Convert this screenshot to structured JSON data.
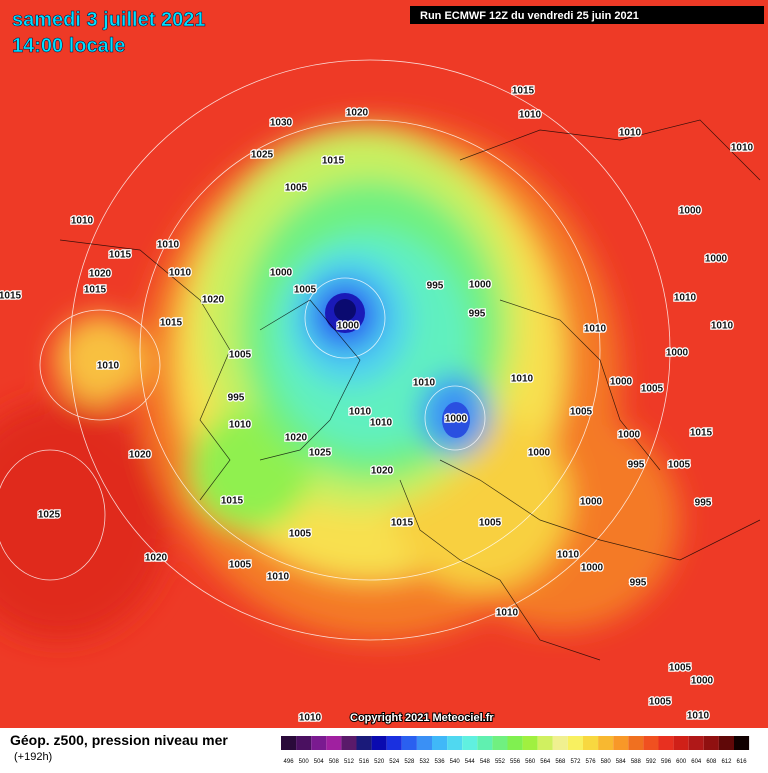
{
  "header": {
    "date": "samedi 3 juillet 2021",
    "time": "14:00 locale",
    "run": "Run ECMWF 12Z du vendredi 25 juin 2021"
  },
  "map": {
    "isobar_labels": [
      "1015",
      "1010",
      "1010",
      "1010",
      "1020",
      "1030",
      "1025",
      "1015",
      "1005",
      "1000",
      "1010",
      "1010",
      "1015",
      "1010",
      "1000",
      "1020",
      "1015",
      "1015",
      "1005",
      "995",
      "1000",
      "1000",
      "1020",
      "1010",
      "995",
      "1015",
      "1000",
      "1010",
      "1010",
      "1005",
      "1010",
      "1000",
      "1010",
      "1010",
      "1000",
      "1005",
      "995",
      "1010",
      "1010",
      "1010",
      "1000",
      "1005",
      "1000",
      "1015",
      "1020",
      "1025",
      "1020",
      "1020",
      "1000",
      "995",
      "1005",
      "1015",
      "1000",
      "995",
      "1025",
      "1015",
      "1005",
      "1005",
      "1020",
      "1005",
      "1010",
      "1010",
      "1000",
      "995",
      "1010",
      "1005",
      "1000",
      "1005",
      "1010",
      "1010"
    ],
    "copyright": "Copyright 2021 Meteociel.fr"
  },
  "legend": {
    "title": "Géop. z500, pression niveau mer",
    "lead": "(+192h)",
    "scale": [
      496,
      500,
      504,
      508,
      512,
      516,
      520,
      524,
      528,
      532,
      536,
      540,
      544,
      548,
      552,
      556,
      560,
      564,
      568,
      572,
      576,
      580,
      584,
      588,
      592,
      596,
      600,
      604,
      608,
      612,
      616
    ],
    "colors": [
      "#2a0a3a",
      "#4a1060",
      "#7a1a90",
      "#a020a0",
      "#5a1a6a",
      "#1a1a7a",
      "#0a0ab0",
      "#1a30e0",
      "#2a60f0",
      "#3a90f5",
      "#40b8f8",
      "#50d8f0",
      "#60f0e0",
      "#60f0b0",
      "#70f080",
      "#80f050",
      "#a0f040",
      "#d0f060",
      "#f0f090",
      "#f8f060",
      "#f8d840",
      "#f8b830",
      "#f89828",
      "#f07020",
      "#f05020",
      "#e83020",
      "#d02018",
      "#b01818",
      "#901010",
      "#600808",
      "#100000"
    ]
  }
}
